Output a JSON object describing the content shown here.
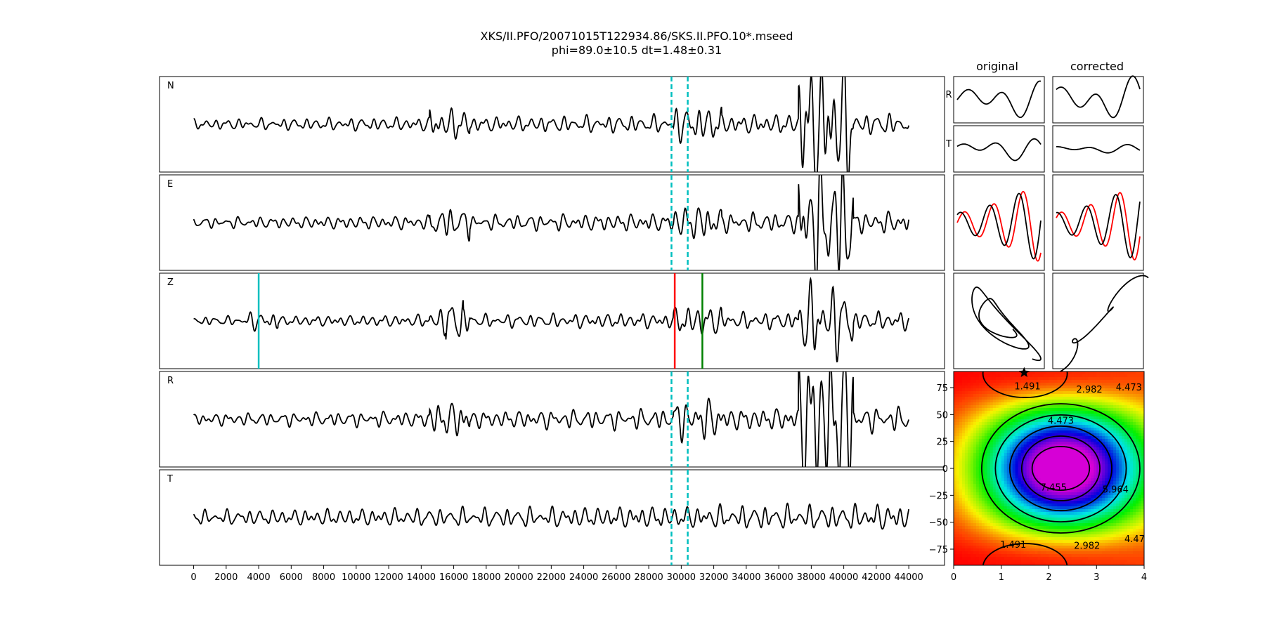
{
  "chart_data": {
    "type": "line",
    "title": "XKS/II.PFO/20071015T122934.86/SKS.II.PFO.10*.mseed",
    "subtitle": "phi=89.0±10.5 dt=1.48±0.31",
    "traces": {
      "x_ticks": [
        0,
        2000,
        4000,
        6000,
        8000,
        10000,
        12000,
        14000,
        16000,
        18000,
        20000,
        22000,
        24000,
        26000,
        28000,
        30000,
        32000,
        34000,
        36000,
        38000,
        40000,
        42000,
        44000
      ],
      "x_range": [
        -2100,
        46200
      ],
      "x_end": 44000,
      "channels": [
        {
          "name": "N",
          "seed": 11
        },
        {
          "name": "E",
          "seed": 23
        },
        {
          "name": "Z",
          "seed": 37
        },
        {
          "name": "R",
          "seed": 53
        },
        {
          "name": "T",
          "seed": 71
        }
      ],
      "window_lines": {
        "channels": [
          "N",
          "E",
          "R",
          "T"
        ],
        "color": "#00bfbf",
        "x": [
          29400,
          30400
        ]
      },
      "phase_markers": [
        {
          "channel": "Z",
          "x": 4000,
          "color": "#00bfbf"
        },
        {
          "channel": "Z",
          "x": 29600,
          "color": "#ff0000"
        },
        {
          "channel": "Z",
          "x": 31300,
          "color": "#008000"
        }
      ]
    },
    "particle_motion": {
      "column_titles": [
        "original",
        "corrected"
      ],
      "row_labels": [
        "R",
        "T"
      ]
    },
    "error_surface": {
      "type": "contour",
      "x_range": [
        0,
        4
      ],
      "y_range": [
        -90,
        90
      ],
      "x_ticks": [
        0,
        1,
        2,
        3,
        4
      ],
      "y_ticks": [
        75,
        50,
        25,
        0,
        -25,
        -50,
        -75
      ],
      "best_fit": {
        "dt": 1.48,
        "phi": 89.0
      },
      "contour_labels": [
        {
          "text": "1.491",
          "x": 1.55,
          "y": 76
        },
        {
          "text": "2.982",
          "x": 2.85,
          "y": 73
        },
        {
          "text": "4.473",
          "x": 3.68,
          "y": 75
        },
        {
          "text": "4.473",
          "x": 2.25,
          "y": 44
        },
        {
          "text": "7.455",
          "x": 2.1,
          "y": -18
        },
        {
          "text": "5.964",
          "x": 3.4,
          "y": -20
        },
        {
          "text": "1.491",
          "x": 1.25,
          "y": -71
        },
        {
          "text": "2.982",
          "x": 2.8,
          "y": -72
        },
        {
          "text": "4.47",
          "x": 3.8,
          "y": -66
        }
      ]
    }
  }
}
